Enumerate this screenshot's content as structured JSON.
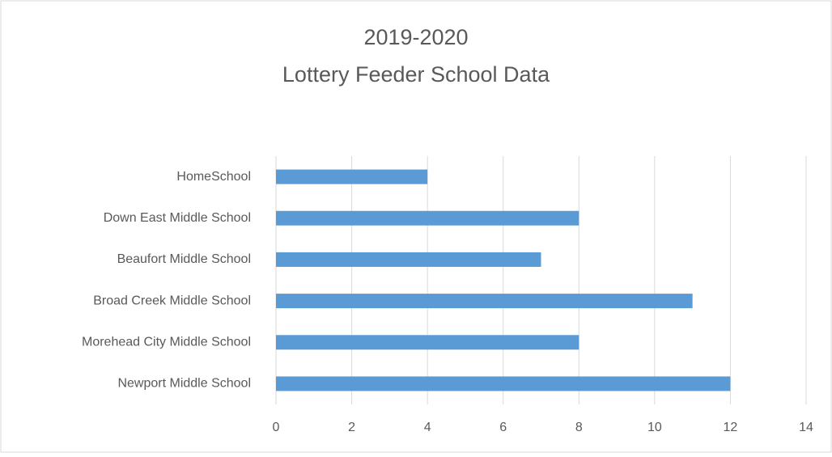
{
  "chart_data": {
    "type": "bar",
    "orientation": "horizontal",
    "title": [
      "2019-2020",
      "Lottery Feeder School Data"
    ],
    "categories": [
      "HomeSchool",
      "Down East Middle School",
      "Beaufort Middle School",
      "Broad Creek Middle School",
      "Morehead City Middle School",
      "Newport Middle School"
    ],
    "values": [
      4,
      8,
      7,
      11,
      8,
      12
    ],
    "color": "#5b9bd5",
    "xlim": [
      0,
      14
    ],
    "xticks": [
      0,
      2,
      4,
      6,
      8,
      10,
      12,
      14
    ],
    "grid": true
  }
}
